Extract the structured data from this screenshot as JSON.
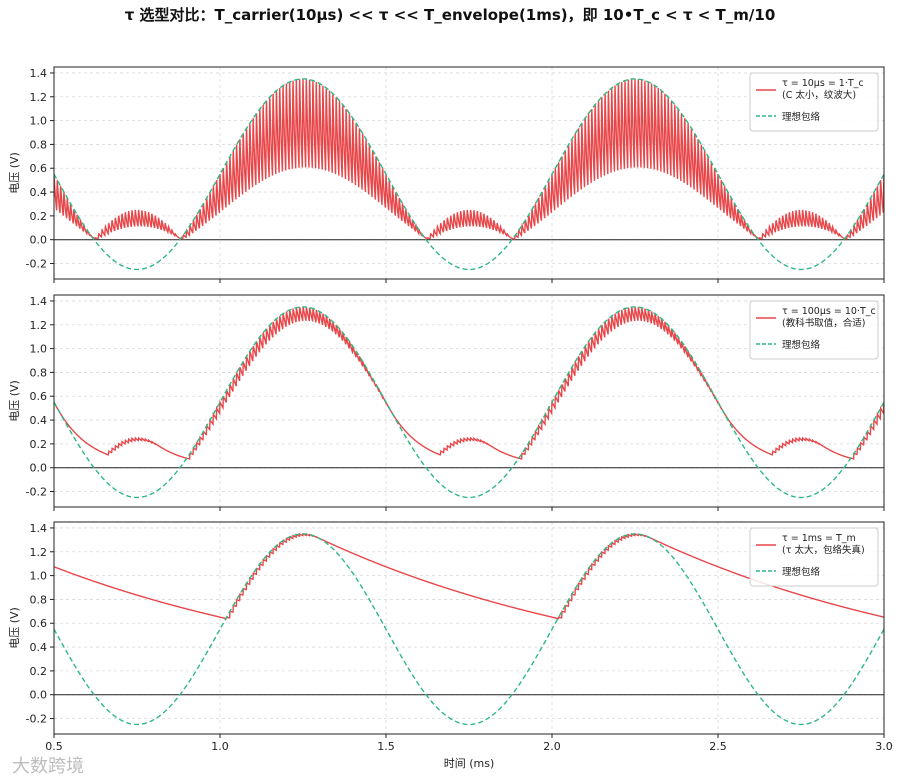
{
  "title": "τ 选型对比：T_carrier(10μs) << τ << T_envelope(1ms)，即 10•T_c < τ < T_m/10",
  "watermark": "大数跨境",
  "chart_data": [
    {
      "type": "line",
      "xlim": [
        0.5,
        3.0
      ],
      "ylim": [
        -0.33,
        1.45
      ],
      "xticks": [
        0.5,
        1.0,
        1.5,
        2.0,
        2.5,
        3.0
      ],
      "xtick_labels": [
        "0.5",
        "1.0",
        "1.5",
        "2.0",
        "2.5",
        "3.0"
      ],
      "yticks": [
        -0.2,
        0.0,
        0.2,
        0.4,
        0.6,
        0.8,
        1.0,
        1.2,
        1.4
      ],
      "ytick_labels": [
        "-0.2",
        "0.0",
        "0.2",
        "0.4",
        "0.6",
        "0.8",
        "1.0",
        "1.2",
        "1.4"
      ],
      "ylabel": "电压 (V)",
      "xlabel": "",
      "grid": true,
      "legend_position": "upper-right",
      "carrier_period_ms": 0.01,
      "envelope": {
        "offset": 0.55,
        "amplitude": 0.8,
        "period_ms": 1.0,
        "peak_at_ms": 1.25
      },
      "tau_ms": 0.01,
      "series": [
        {
          "name": "τ = 10μs = 1·T_c",
          "name2": "(C 太小，纹波大)",
          "color": "#e8474a",
          "style": "solid"
        },
        {
          "name": "理想包络",
          "color": "#2fb884",
          "style": "dashed"
        }
      ],
      "zero_line": true
    },
    {
      "type": "line",
      "xlim": [
        0.5,
        3.0
      ],
      "ylim": [
        -0.33,
        1.45
      ],
      "xticks": [
        0.5,
        1.0,
        1.5,
        2.0,
        2.5,
        3.0
      ],
      "xtick_labels": [
        "0.5",
        "1.0",
        "1.5",
        "2.0",
        "2.5",
        "3.0"
      ],
      "yticks": [
        -0.2,
        0.0,
        0.2,
        0.4,
        0.6,
        0.8,
        1.0,
        1.2,
        1.4
      ],
      "ytick_labels": [
        "-0.2",
        "0.0",
        "0.2",
        "0.4",
        "0.6",
        "0.8",
        "1.0",
        "1.2",
        "1.4"
      ],
      "ylabel": "电压 (V)",
      "xlabel": "",
      "grid": true,
      "legend_position": "upper-right",
      "carrier_period_ms": 0.01,
      "envelope": {
        "offset": 0.55,
        "amplitude": 0.8,
        "period_ms": 1.0,
        "peak_at_ms": 1.25
      },
      "tau_ms": 0.1,
      "series": [
        {
          "name": "τ = 100μs = 10·T_c",
          "name2": "(教科书取值，合适)",
          "color": "#e8474a",
          "style": "solid"
        },
        {
          "name": "理想包络",
          "color": "#2fb884",
          "style": "dashed"
        }
      ],
      "zero_line": true
    },
    {
      "type": "line",
      "xlim": [
        0.5,
        3.0
      ],
      "ylim": [
        -0.33,
        1.45
      ],
      "xticks": [
        0.5,
        1.0,
        1.5,
        2.0,
        2.5,
        3.0
      ],
      "xtick_labels": [
        "0.5",
        "1.0",
        "1.5",
        "2.0",
        "2.5",
        "3.0"
      ],
      "yticks": [
        -0.2,
        0.0,
        0.2,
        0.4,
        0.6,
        0.8,
        1.0,
        1.2,
        1.4
      ],
      "ytick_labels": [
        "-0.2",
        "0.0",
        "0.2",
        "0.4",
        "0.6",
        "0.8",
        "1.0",
        "1.2",
        "1.4"
      ],
      "ylabel": "电压 (V)",
      "xlabel": "时间 (ms)",
      "grid": true,
      "legend_position": "upper-right",
      "carrier_period_ms": 0.01,
      "envelope": {
        "offset": 0.55,
        "amplitude": 0.8,
        "period_ms": 1.0,
        "peak_at_ms": 1.25
      },
      "tau_ms": 1.0,
      "series": [
        {
          "name": "τ = 1ms = T_m",
          "name2": "(τ 太大，包络失真)",
          "color": "#e8474a",
          "style": "solid"
        },
        {
          "name": "理想包络",
          "color": "#2fb884",
          "style": "dashed"
        }
      ],
      "zero_line": true
    }
  ]
}
